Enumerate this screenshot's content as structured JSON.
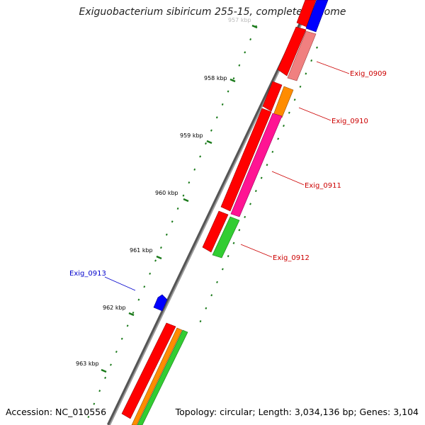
{
  "header": {
    "title": "Exiguobacterium sibiricum 255-15, complete genome"
  },
  "footer": {
    "accession": "Accession: NC_010556",
    "summary": "Topology: circular; Length: 3,034,136 bp; Genes: 3,104"
  },
  "ruler": {
    "labels": [
      "957 kbp",
      "958 kbp",
      "959 kbp",
      "960 kbp",
      "961 kbp",
      "962 kbp",
      "963 kbp"
    ],
    "tick_color": "#1a7a1a"
  },
  "gene_labels": {
    "exig_0909": "Exig_0909",
    "exig_0910": "Exig_0910",
    "exig_0911": "Exig_0911",
    "exig_0912": "Exig_0912",
    "exig_0913": "Exig_0913"
  },
  "colors": {
    "backbone": "#7a7a7a",
    "gene_red": "#ff0000",
    "gene_blue": "#0000ff",
    "gene_orange": "#ff8c00",
    "gene_pink": "#ff1493",
    "gene_green": "#32cd32",
    "gene_salmon": "#f08080",
    "label_red": "#cc0000",
    "label_blue": "#0000cc"
  }
}
